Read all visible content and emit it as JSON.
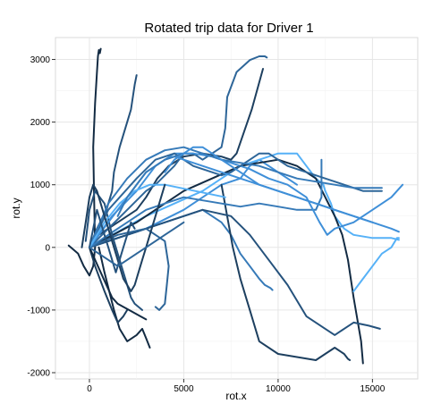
{
  "chart_data": {
    "type": "line",
    "title": "Rotated trip data for Driver 1",
    "xlabel": "rot.x",
    "ylabel": "rot.y",
    "xlim": [
      -1800,
      17400
    ],
    "ylim": [
      -2100,
      3350
    ],
    "x_ticks": [
      0,
      5000,
      10000,
      15000
    ],
    "y_ticks": [
      -2000,
      -1000,
      0,
      1000,
      2000,
      3000
    ],
    "grid": true,
    "legend": "none",
    "colors": [
      "#132b43",
      "#1d3f5f",
      "#25527c",
      "#2e6699",
      "#367ab8",
      "#3f8fd8",
      "#56b1f7"
    ],
    "series": [
      {
        "x": [
          -1100,
          -600,
          -300,
          0,
          200,
          300,
          250,
          200,
          300,
          400,
          450,
          500,
          550,
          600
        ],
        "y": [
          30,
          -100,
          -300,
          -450,
          -300,
          0,
          800,
          1600,
          2300,
          2800,
          3050,
          3150,
          3100,
          3170
        ]
      },
      {
        "x": [
          0,
          500,
          1500,
          2500,
          3000,
          3600,
          4200,
          5000,
          6000,
          7000,
          7500,
          7800,
          8600,
          9200
        ],
        "y": [
          0,
          200,
          400,
          600,
          800,
          1100,
          1300,
          1450,
          1500,
          1450,
          1400,
          1500,
          2200,
          2850
        ]
      },
      {
        "x": [
          0,
          400,
          900,
          1200,
          1300,
          1600,
          2000,
          2200,
          2300,
          2400,
          2500
        ],
        "y": [
          0,
          300,
          600,
          900,
          1200,
          1600,
          2000,
          2200,
          2400,
          2600,
          2750
        ]
      },
      {
        "x": [
          0,
          1000,
          2000,
          3000,
          3500,
          4500,
          5000,
          5500,
          6000,
          6500,
          7000,
          7200,
          7300,
          7800,
          8500,
          9000,
          9300,
          9400
        ],
        "y": [
          0,
          300,
          600,
          900,
          1000,
          1300,
          1500,
          1500,
          1400,
          1500,
          1600,
          1900,
          2400,
          2800,
          2990,
          3050,
          3050,
          3030
        ]
      },
      {
        "x": [
          0,
          2000,
          4000,
          6000,
          7000,
          7500,
          8000,
          8500,
          9000,
          9300,
          9600,
          9700
        ],
        "y": [
          0,
          200,
          400,
          600,
          400,
          200,
          -100,
          -300,
          -500,
          -600,
          -650,
          -680
        ]
      },
      {
        "x": [
          0,
          3000,
          5000,
          7000,
          8000,
          8500,
          9000,
          9500,
          10000,
          10500,
          11000
        ],
        "y": [
          0,
          300,
          600,
          1000,
          1100,
          1300,
          1400,
          1300,
          1200,
          1100,
          1000
        ]
      },
      {
        "x": [
          0,
          3000,
          6000,
          8000,
          9000,
          10000,
          11000,
          11500,
          12000,
          12400,
          12500,
          12800,
          13000,
          13500,
          14000,
          15000,
          16000,
          16400
        ],
        "y": [
          0,
          500,
          900,
          1300,
          1400,
          1500,
          1500,
          1300,
          1100,
          1000,
          900,
          700,
          500,
          300,
          200,
          150,
          150,
          120
        ]
      },
      {
        "x": [
          0,
          2500,
          5000,
          8000,
          10000,
          11000,
          12000,
          12500,
          13000,
          13400,
          13700,
          14000,
          14400,
          14500
        ],
        "y": [
          0,
          400,
          900,
          1300,
          1400,
          1300,
          1100,
          800,
          500,
          200,
          -200,
          -800,
          -1500,
          -1850
        ]
      },
      {
        "x": [
          7000,
          7600,
          8000,
          8500,
          9000,
          10000,
          11000,
          12000,
          12500,
          13000,
          13500,
          13700,
          13800
        ],
        "y": [
          1000,
          0,
          -500,
          -1000,
          -1500,
          -1700,
          -1750,
          -1800,
          -1700,
          -1600,
          -1700,
          -1780,
          -1800
        ]
      },
      {
        "x": [
          0,
          3000,
          6000,
          7500,
          8500,
          9500,
          10500,
          11500,
          12500,
          13000,
          13500,
          14000,
          14800,
          15400
        ],
        "y": [
          0,
          300,
          600,
          500,
          200,
          -200,
          -600,
          -1100,
          -1300,
          -1400,
          -1300,
          -1200,
          -1250,
          -1300
        ]
      },
      {
        "x": [
          0,
          1500,
          3000,
          4000,
          4200,
          4100,
          4000,
          3700,
          3500
        ],
        "y": [
          0,
          200,
          300,
          100,
          -300,
          -600,
          -900,
          -1000,
          -950
        ]
      },
      {
        "x": [
          0,
          1000,
          2000,
          3000,
          4000,
          5000,
          6000,
          7000,
          8000,
          9000,
          10000,
          11000,
          12000,
          12300,
          12300
        ],
        "y": [
          0,
          200,
          400,
          600,
          700,
          800,
          750,
          700,
          650,
          700,
          650,
          600,
          600,
          800,
          1400
        ]
      },
      {
        "x": [
          0,
          1200,
          2500,
          3500,
          4500,
          5500,
          6500,
          7500,
          8500,
          9500,
          10500,
          11000,
          11500,
          12200,
          12600,
          13000,
          14000,
          15000,
          16000,
          16600
        ],
        "y": [
          0,
          500,
          900,
          1300,
          1500,
          1500,
          1450,
          1350,
          1250,
          1100,
          1000,
          900,
          800,
          400,
          200,
          300,
          400,
          600,
          800,
          1000
        ]
      },
      {
        "x": [
          14000,
          14500,
          15000,
          15500,
          16000,
          16200,
          16300,
          16400
        ],
        "y": [
          -700,
          -500,
          -300,
          -100,
          0,
          100,
          150,
          150
        ]
      },
      {
        "x": [
          500,
          800,
          1300,
          1600,
          2000,
          2500,
          2800,
          3000,
          3200
        ],
        "y": [
          0,
          -400,
          -1000,
          -1300,
          -1500,
          -1400,
          -1300,
          -1450,
          -1600
        ]
      },
      {
        "x": [
          0,
          300,
          800,
          1200,
          1500,
          1800,
          2000
        ],
        "y": [
          0,
          -300,
          -700,
          -1000,
          -1200,
          -1100,
          -1000
        ]
      },
      {
        "x": [
          -200,
          0,
          300,
          800,
          1200,
          1600,
          2000,
          2200,
          2400,
          2800
        ],
        "y": [
          100,
          600,
          900,
          700,
          200,
          -200,
          -600,
          -800,
          -900,
          -1000
        ]
      },
      {
        "x": [
          0,
          1000,
          2500,
          3500,
          4500,
          5000,
          5500,
          6000,
          6500,
          7000,
          7500,
          8000,
          8500,
          9000,
          9500,
          10000,
          10500,
          11000,
          11500,
          12000,
          12500,
          13000,
          13500,
          14000,
          14500,
          15000,
          15500
        ],
        "y": [
          0,
          600,
          1100,
          1400,
          1500,
          1400,
          1300,
          1250,
          1200,
          1150,
          1200,
          1300,
          1400,
          1500,
          1500,
          1400,
          1300,
          1250,
          1200,
          1150,
          1100,
          1050,
          1000,
          950,
          900,
          900,
          900
        ]
      },
      {
        "x": [
          0,
          1000,
          2000,
          3000,
          4000,
          5000,
          6000,
          7000,
          8000,
          9000,
          10000,
          11000,
          12000,
          13000,
          14000,
          15000,
          15500
        ],
        "y": [
          0,
          700,
          1100,
          1400,
          1550,
          1600,
          1500,
          1400,
          1350,
          1300,
          1200,
          1100,
          1050,
          1000,
          950,
          950,
          950
        ]
      },
      {
        "x": [
          0,
          500,
          1000,
          1500,
          2000,
          2500,
          3000,
          3500,
          4000,
          4500,
          5000,
          5500,
          6000,
          6500,
          7000,
          7500,
          8000,
          8500,
          9000,
          9500,
          10000,
          10500,
          11000,
          11500,
          12000,
          12500,
          13000,
          13500,
          14000,
          14500,
          15000,
          15500,
          16000,
          16400
        ],
        "y": [
          0,
          200,
          400,
          600,
          800,
          1000,
          1200,
          1300,
          1400,
          1450,
          1400,
          1350,
          1300,
          1250,
          1200,
          1150,
          1100,
          1050,
          1000,
          950,
          900,
          850,
          800,
          750,
          700,
          650,
          600,
          550,
          500,
          450,
          400,
          350,
          300,
          250
        ]
      },
      {
        "x": [
          0,
          800,
          1600,
          2400,
          3200,
          4000,
          4800,
          5600,
          6400,
          7200
        ],
        "y": [
          0,
          400,
          700,
          900,
          1000,
          1000,
          950,
          900,
          850,
          800
        ]
      },
      {
        "x": [
          0,
          300,
          600,
          900,
          1200,
          1500,
          1800,
          2100,
          2400,
          2700,
          3000
        ],
        "y": [
          0,
          -200,
          -400,
          -600,
          -800,
          -900,
          -950,
          -1000,
          -1050,
          -1100,
          -1150
        ]
      },
      {
        "x": [
          -400,
          -200,
          0,
          200,
          400,
          600,
          800,
          1000,
          1200,
          1400,
          1600,
          1800,
          2000,
          2200,
          2400,
          2600,
          2800,
          3000,
          3200,
          3400,
          3600,
          3800,
          4000
        ],
        "y": [
          0,
          400,
          800,
          1000,
          900,
          700,
          500,
          300,
          100,
          -100,
          -300,
          -500,
          -600,
          -700,
          -600,
          -400,
          -200,
          0,
          200,
          400,
          600,
          800,
          1000
        ]
      },
      {
        "x": [
          0,
          200,
          400,
          600,
          800,
          1000,
          1200,
          1400,
          1600,
          1800,
          2000,
          2200,
          2400
        ],
        "y": [
          0,
          300,
          600,
          400,
          200,
          0,
          -200,
          -400,
          -200,
          0,
          200,
          400,
          300
        ]
      },
      {
        "x": [
          0,
          500,
          1000,
          1500,
          2000,
          2500,
          3000,
          3500,
          4000,
          4500,
          5000
        ],
        "y": [
          0,
          -100,
          -200,
          -300,
          -200,
          -100,
          0,
          100,
          200,
          300,
          400
        ]
      },
      {
        "x": [
          1500,
          2000,
          2500,
          3000,
          3500,
          4000,
          4500,
          5000
        ],
        "y": [
          500,
          800,
          1000,
          1200,
          1300,
          1400,
          1450,
          1500
        ]
      },
      {
        "x": [
          4000,
          4500,
          5000,
          5500,
          6000,
          6500,
          7000,
          7500,
          8000,
          8500,
          9000,
          9500,
          10000,
          10500,
          11000,
          11500,
          12000,
          12500,
          13000,
          13500,
          14000,
          14500,
          15000
        ],
        "y": [
          1200,
          1400,
          1500,
          1600,
          1600,
          1500,
          1400,
          1300,
          1200,
          1100,
          1000,
          950,
          900,
          850,
          800,
          750,
          700,
          650,
          600,
          550,
          500,
          450,
          400
        ]
      }
    ]
  }
}
